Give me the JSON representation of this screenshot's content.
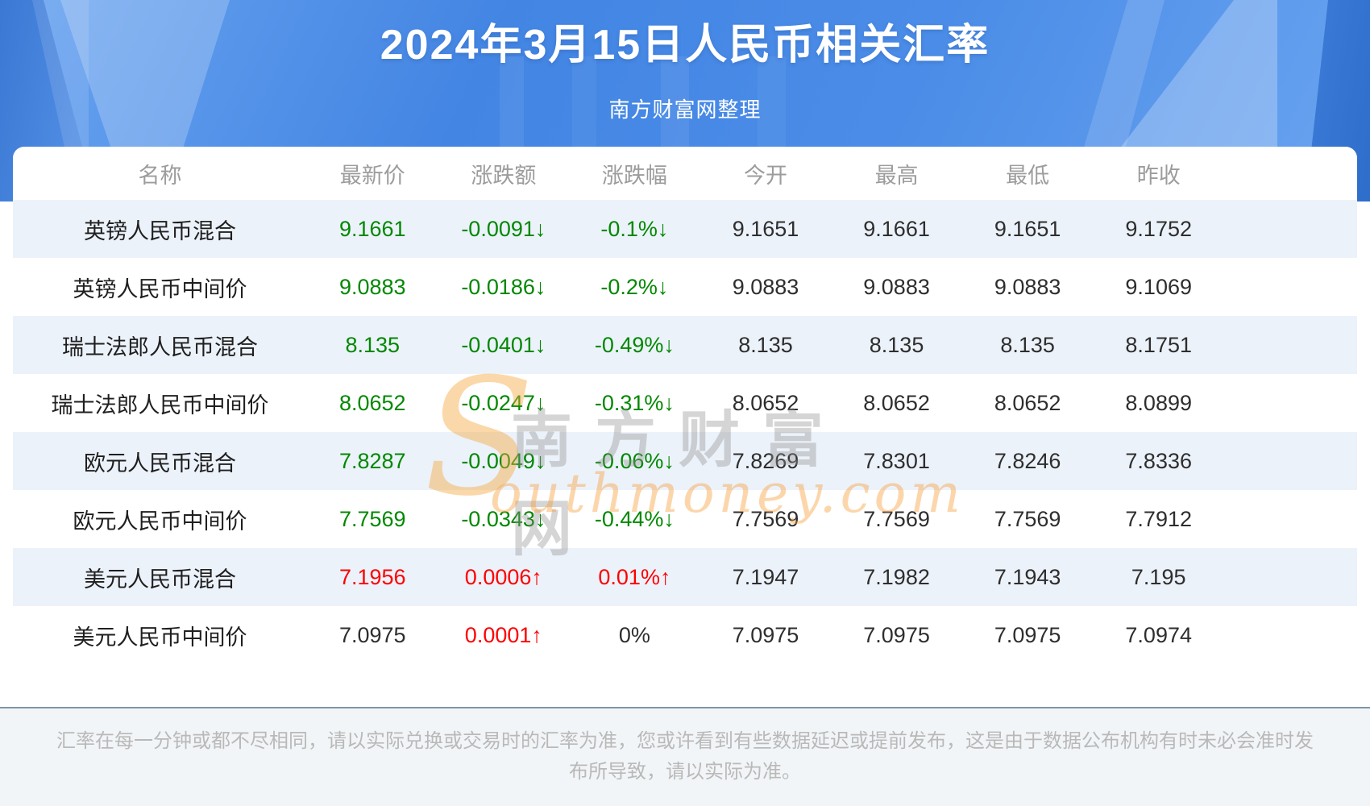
{
  "header": {
    "title": "2024年3月15日人民币相关汇率",
    "subtitle": "南方财富网整理"
  },
  "chart_data": {
    "type": "table",
    "title": "2024年3月15日人民币相关汇率",
    "columns": [
      "名称",
      "最新价",
      "涨跌额",
      "涨跌幅",
      "今开",
      "最高",
      "最低",
      "昨收"
    ],
    "rows": [
      {
        "name": "英镑人民币混合",
        "latest": "9.1661",
        "change": "-0.0091↓",
        "pct": "-0.1%↓",
        "open": "9.1651",
        "high": "9.1661",
        "low": "9.1651",
        "prev": "9.1752",
        "latest_color": "down",
        "change_color": "down",
        "pct_color": "down"
      },
      {
        "name": "英镑人民币中间价",
        "latest": "9.0883",
        "change": "-0.0186↓",
        "pct": "-0.2%↓",
        "open": "9.0883",
        "high": "9.0883",
        "low": "9.0883",
        "prev": "9.1069",
        "latest_color": "down",
        "change_color": "down",
        "pct_color": "down"
      },
      {
        "name": "瑞士法郎人民币混合",
        "latest": "8.135",
        "change": "-0.0401↓",
        "pct": "-0.49%↓",
        "open": "8.135",
        "high": "8.135",
        "low": "8.135",
        "prev": "8.1751",
        "latest_color": "down",
        "change_color": "down",
        "pct_color": "down"
      },
      {
        "name": "瑞士法郎人民币中间价",
        "latest": "8.0652",
        "change": "-0.0247↓",
        "pct": "-0.31%↓",
        "open": "8.0652",
        "high": "8.0652",
        "low": "8.0652",
        "prev": "8.0899",
        "latest_color": "down",
        "change_color": "down",
        "pct_color": "down"
      },
      {
        "name": "欧元人民币混合",
        "latest": "7.8287",
        "change": "-0.0049↓",
        "pct": "-0.06%↓",
        "open": "7.8269",
        "high": "7.8301",
        "low": "7.8246",
        "prev": "7.8336",
        "latest_color": "down",
        "change_color": "down",
        "pct_color": "down"
      },
      {
        "name": "欧元人民币中间价",
        "latest": "7.7569",
        "change": "-0.0343↓",
        "pct": "-0.44%↓",
        "open": "7.7569",
        "high": "7.7569",
        "low": "7.7569",
        "prev": "7.7912",
        "latest_color": "down",
        "change_color": "down",
        "pct_color": "down"
      },
      {
        "name": "美元人民币混合",
        "latest": "7.1956",
        "change": "0.0006↑",
        "pct": "0.01%↑",
        "open": "7.1947",
        "high": "7.1982",
        "low": "7.1943",
        "prev": "7.195",
        "latest_color": "up",
        "change_color": "up",
        "pct_color": "up"
      },
      {
        "name": "美元人民币中间价",
        "latest": "7.0975",
        "change": "0.0001↑",
        "pct": "0%",
        "open": "7.0975",
        "high": "7.0975",
        "low": "7.0975",
        "prev": "7.0974",
        "latest_color": "neutral",
        "change_color": "up",
        "pct_color": "neutral"
      }
    ]
  },
  "watermark": {
    "en_initial": "S",
    "en_rest": "outhmoney.com",
    "cn": "南方财富网"
  },
  "footer": {
    "disclaimer": "汇率在每一分钟或都不尽相同，请以实际兑换或交易时的汇率为准，您或许看到有些数据延迟或提前发布，这是由于数据公布机构有时未必会准时发布所导致，请以实际为准。"
  },
  "colors": {
    "up": "#fe0000",
    "down": "#008800",
    "neutral": "#2e2e2e",
    "accent_blue": "#4385e3",
    "alt_row_bg": "#ecf2fa"
  }
}
